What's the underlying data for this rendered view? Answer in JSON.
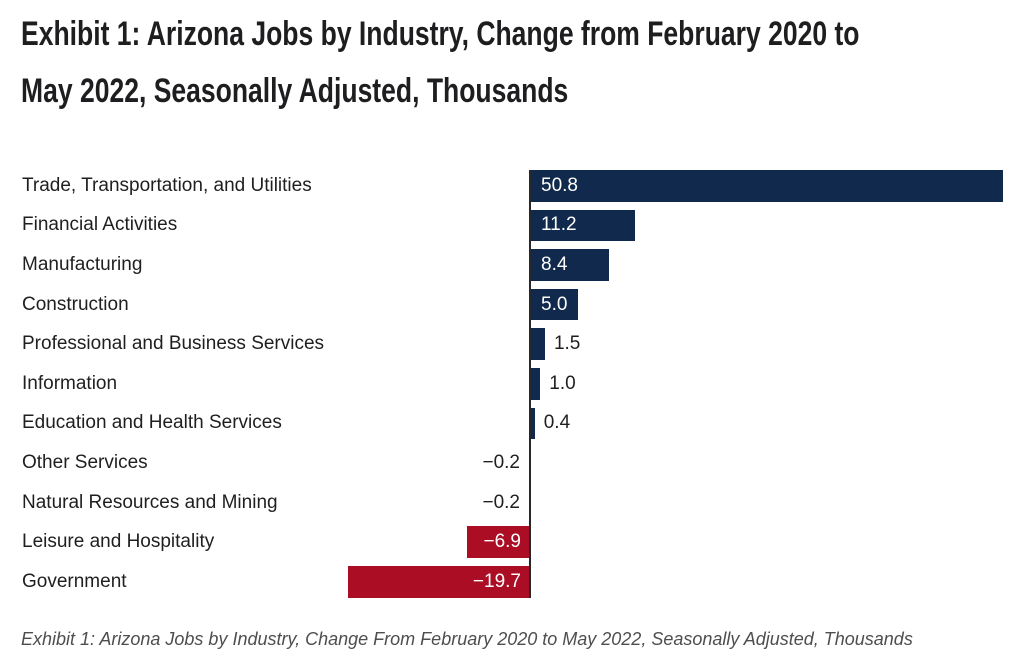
{
  "title": {
    "line1": "Exhibit 1: Arizona Jobs by Industry, Change from February 2020 to",
    "line2": "May 2022, Seasonally Adjusted, Thousands",
    "full": "Exhibit 1: Arizona Jobs by Industry, Change from February 2020 to May 2022, Seasonally Adjusted, Thousands"
  },
  "caption": "Exhibit 1: Arizona Jobs by Industry, Change From February 2020 to May 2022, Seasonally Adjusted, Thousands",
  "chart_data": {
    "type": "bar",
    "orientation": "horizontal",
    "title": "Exhibit 1: Arizona Jobs by Industry, Change from February 2020 to May 2022, Seasonally Adjusted, Thousands",
    "unit": "Thousands",
    "categories": [
      "Trade, Transportation, and Utilities",
      "Financial Activities",
      "Manufacturing",
      "Construction",
      "Professional and Business Services",
      "Information",
      "Education and Health Services",
      "Other Services",
      "Natural Resources and Mining",
      "Leisure and Hospitality",
      "Government"
    ],
    "values": [
      50.8,
      11.2,
      8.4,
      5.0,
      1.5,
      1.0,
      0.4,
      -0.2,
      -0.2,
      -6.9,
      -19.7
    ],
    "value_labels": [
      "50.8",
      "11.2",
      "8.4",
      "5.0",
      "1.5",
      "1.0",
      "0.4",
      "−0.2",
      "−0.2",
      "−6.9",
      "−19.7"
    ],
    "xlim": [
      -19.7,
      50.8
    ],
    "grid": false,
    "legend": "none",
    "positive_color": "#10294c",
    "negative_color": "#ab0d24",
    "axis_color": "#28282a",
    "label_color": "#1f1f1f",
    "inside_value_color": "#ffffff"
  }
}
